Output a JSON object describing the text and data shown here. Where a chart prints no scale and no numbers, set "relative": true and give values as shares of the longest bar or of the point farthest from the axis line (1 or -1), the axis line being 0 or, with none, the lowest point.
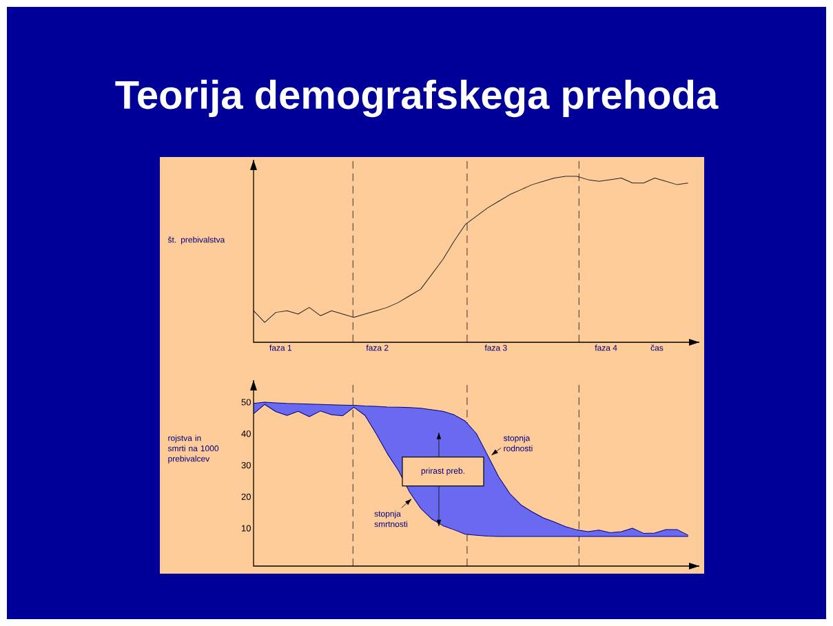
{
  "chart_data": [
    {
      "type": "line",
      "title": "Teorija demografskega prehoda",
      "ylabel": "št. prebivalstva",
      "xlabel": "čas",
      "relative": true,
      "tick_labels": false,
      "categories": [
        null,
        null,
        null,
        null,
        null,
        null,
        null,
        null,
        null,
        null,
        null,
        null,
        null,
        null,
        null,
        null,
        null,
        null,
        null,
        null,
        null,
        null,
        null,
        null,
        null,
        null,
        null,
        null,
        null,
        null,
        null,
        null,
        null,
        null,
        null,
        null,
        null,
        null,
        null,
        null
      ],
      "series": [
        {
          "color": "#222222",
          "values": [
            0.19,
            0.12,
            0.18,
            0.19,
            0.17,
            0.21,
            0.16,
            0.19,
            0.17,
            0.15,
            0.17,
            0.19,
            0.21,
            0.24,
            0.28,
            0.32,
            0.41,
            0.5,
            0.61,
            0.71,
            0.76,
            0.81,
            0.85,
            0.89,
            0.92,
            0.95,
            0.97,
            0.99,
            1.0,
            1.0,
            0.98,
            0.97,
            0.98,
            0.99,
            0.96,
            0.96,
            0.99,
            0.97,
            0.95,
            0.96
          ]
        }
      ],
      "annotations": [
        "faza 1",
        "faza 2",
        "faza 3",
        "faza 4"
      ]
    },
    {
      "type": "line",
      "ylabel": "rojstva in smrti na 1000 prebivalcev",
      "tick_labels": "y",
      "ylim": [
        -2,
        57
      ],
      "yticks": [
        10,
        20,
        30,
        40,
        50
      ],
      "categories": [
        null,
        null,
        null,
        null,
        null,
        null,
        null,
        null,
        null,
        null,
        null,
        null,
        null,
        null,
        null,
        null,
        null,
        null,
        null,
        null,
        null,
        null,
        null,
        null,
        null,
        null,
        null,
        null,
        null,
        null,
        null,
        null,
        null,
        null,
        null,
        null,
        null,
        null,
        null,
        null
      ],
      "series": [
        {
          "name": "stopnja rodnosti",
          "color": "#000080",
          "values": [
            49.6,
            50,
            49.8,
            49.6,
            49.5,
            49.4,
            49.3,
            49.2,
            49.1,
            49,
            48.8,
            48.7,
            48.5,
            48.4,
            48.3,
            48.1,
            47.6,
            47.1,
            46,
            44,
            40,
            33.2,
            26.3,
            21,
            17.4,
            15.2,
            13.3,
            12,
            10.5,
            9.5,
            8.9,
            9.4,
            8.6,
            8.9,
            10,
            8.4,
            8.5,
            9.6,
            9.6,
            7.8
          ],
          "upper": [
            49.6,
            50,
            49.8,
            49.6,
            49.5,
            49.4,
            49.3,
            49.2,
            49.1,
            49,
            48.8,
            48.7,
            48.5,
            48.4,
            48.3,
            48.1,
            47.6,
            47.1,
            46,
            44,
            40,
            33.2,
            26.3,
            21,
            17.4,
            15.2,
            13.3,
            12,
            10.5,
            9.5,
            8.9,
            9.4,
            8.6,
            8.9,
            10,
            8.4,
            8.5,
            9.6,
            9.6,
            7.8
          ],
          "lower": [
            46.3,
            49.3,
            47,
            45.8,
            47.1,
            45.4,
            47.2,
            46,
            45.7,
            48.4,
            45.8,
            40,
            33.7,
            28.3,
            21.5,
            16.3,
            12.9,
            10.8,
            9.5,
            8.1,
            7.8,
            7.5,
            7.4,
            7.4,
            7.4,
            7.4,
            7.4,
            7.4,
            7.4,
            7.4,
            7.4,
            7.4,
            7.4,
            7.4,
            7.4,
            7.4,
            7.4,
            7.4,
            7.4,
            7.4
          ]
        },
        {
          "name": "stopnja smrtnosti",
          "color": "#000080",
          "values": [
            46.3,
            49.3,
            47,
            45.8,
            47.1,
            45.4,
            47.2,
            46,
            45.7,
            48.4,
            45.8,
            40,
            33.7,
            28.3,
            21.5,
            16.3,
            12.9,
            10.8,
            9.5,
            8.1,
            7.8,
            7.5,
            7.4,
            7.4,
            7.4,
            7.4,
            7.4,
            7.4,
            7.4,
            7.4,
            7.4,
            7.4,
            7.4,
            7.4,
            7.4,
            7.4,
            7.4,
            7.4,
            7.4,
            7.4
          ]
        }
      ],
      "annotations": [
        "prirast preb."
      ]
    }
  ]
}
